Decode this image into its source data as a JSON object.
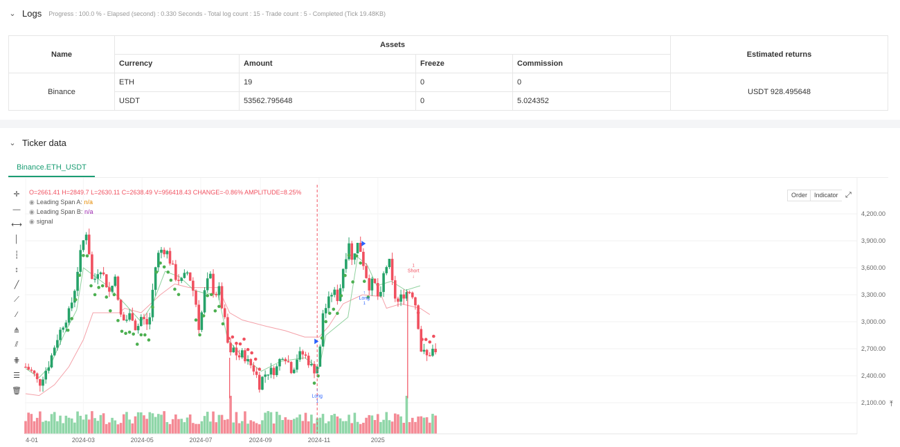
{
  "logs": {
    "title": "Logs",
    "progress_text": "Progress : 100.0 % - Elapsed (second) : 0.330  Seconds - Total log count : 15 - Trade count : 5 - Completed (Tick 19.48KB)"
  },
  "assets_table": {
    "name_header": "Name",
    "assets_header": "Assets",
    "returns_header": "Estimated returns",
    "columns": [
      "Currency",
      "Amount",
      "Freeze",
      "Commission"
    ],
    "exchange": "Binance",
    "rows": [
      {
        "currency": "ETH",
        "amount": "19",
        "freeze": "0",
        "commission": "0"
      },
      {
        "currency": "USDT",
        "amount": "53562.795648",
        "freeze": "0",
        "commission": "5.024352"
      }
    ],
    "estimated_returns": "USDT 928.495648"
  },
  "ticker": {
    "title": "Ticker data",
    "tab": "Binance.ETH_USDT"
  },
  "chart_header": {
    "ohlc_line": "O=2661.41 H=2849.7 L=2630.11 C=2638.49 V=956418.43 CHANGE=-0.86% AMPLITUDE=8.25%",
    "span_a_label": "Leading Span A:",
    "span_a_value": "n/a",
    "span_b_label": "Leading Span B:",
    "span_b_value": "n/a",
    "signal_label": "signal"
  },
  "chart_buttons": {
    "order": "Order",
    "indicator": "Indicator"
  },
  "tool_icons": [
    "crosshair-icon",
    "horizontal-line-icon",
    "horizontal-ray-icon",
    "vertical-line-icon",
    "vertical-segment-icon",
    "vertical-arrow-icon",
    "trend-line-icon",
    "ray-line-icon",
    "extended-line-icon",
    "price-range-icon",
    "parallel-channel-icon",
    "pitchfork-icon",
    "fib-retracement-icon",
    "delete-icon"
  ],
  "colors": {
    "up": "#26a269",
    "down": "#f0505f",
    "span_a": "#8fd19e",
    "span_b": "#f4a0a8",
    "signal_dot": "#4caf50",
    "marker": "#2962ff",
    "accent": "#1a9d73"
  },
  "chart_data": {
    "type": "candlestick",
    "symbol": "Binance.ETH_USDT",
    "y_ticks": [
      2100,
      2400,
      2700,
      3000,
      3300,
      3600,
      3900,
      4200
    ],
    "y_tick_labels": [
      "2,100.00",
      "2,400.00",
      "2,700.00",
      "3,000.00",
      "3,300.00",
      "3,600.00",
      "3,900.00",
      "4,200.00"
    ],
    "ylim": [
      1980,
      4300
    ],
    "x_tick_labels": [
      "4-01",
      "2024-03",
      "2024-05",
      "2024-07",
      "2024-09",
      "2024-11",
      "2025"
    ],
    "x_tick_days": [
      0,
      60,
      121,
      182,
      244,
      305,
      366
    ],
    "first_day_date": "2024-01-01",
    "close_path": [
      [
        0,
        2500
      ],
      [
        8,
        2430
      ],
      [
        14,
        2300
      ],
      [
        18,
        2400
      ],
      [
        25,
        2550
      ],
      [
        32,
        2800
      ],
      [
        40,
        3000
      ],
      [
        45,
        3100
      ],
      [
        50,
        3300
      ],
      [
        55,
        3650
      ],
      [
        60,
        3900
      ],
      [
        63,
        4000
      ],
      [
        67,
        3700
      ],
      [
        70,
        3350
      ],
      [
        73,
        3550
      ],
      [
        78,
        3600
      ],
      [
        83,
        3450
      ],
      [
        88,
        3300
      ],
      [
        93,
        3550
      ],
      [
        97,
        3100
      ],
      [
        103,
        3000
      ],
      [
        110,
        3100
      ],
      [
        115,
        2900
      ],
      [
        120,
        3050
      ],
      [
        124,
        3000
      ],
      [
        128,
        2950
      ],
      [
        132,
        3350
      ],
      [
        136,
        3700
      ],
      [
        140,
        3800
      ],
      [
        146,
        3800
      ],
      [
        151,
        3650
      ],
      [
        156,
        3500
      ],
      [
        162,
        3450
      ],
      [
        168,
        3550
      ],
      [
        172,
        3450
      ],
      [
        177,
        3200
      ],
      [
        180,
        2950
      ],
      [
        183,
        3100
      ],
      [
        187,
        3400
      ],
      [
        192,
        3500
      ],
      [
        196,
        3300
      ],
      [
        201,
        3350
      ],
      [
        207,
        3000
      ],
      [
        212,
        2600
      ],
      [
        216,
        2700
      ],
      [
        221,
        2600
      ],
      [
        226,
        2650
      ],
      [
        231,
        2550
      ],
      [
        236,
        2500
      ],
      [
        240,
        2400
      ],
      [
        243,
        2300
      ],
      [
        247,
        2400
      ],
      [
        252,
        2450
      ],
      [
        257,
        2450
      ],
      [
        262,
        2500
      ],
      [
        266,
        2650
      ],
      [
        271,
        2600
      ],
      [
        277,
        2450
      ],
      [
        282,
        2600
      ],
      [
        287,
        2650
      ],
      [
        292,
        2600
      ],
      [
        297,
        2500
      ],
      [
        302,
        2450
      ],
      [
        306,
        2700
      ],
      [
        309,
        3100
      ],
      [
        314,
        3200
      ],
      [
        319,
        3350
      ],
      [
        325,
        3250
      ],
      [
        330,
        3600
      ],
      [
        336,
        3900
      ],
      [
        340,
        3600
      ],
      [
        343,
        3900
      ],
      [
        348,
        3800
      ],
      [
        353,
        3550
      ],
      [
        357,
        3400
      ],
      [
        362,
        3450
      ],
      [
        368,
        3200
      ],
      [
        373,
        3600
      ],
      [
        378,
        3650
      ],
      [
        382,
        3350
      ],
      [
        386,
        3200
      ],
      [
        392,
        3300
      ],
      [
        398,
        3350
      ],
      [
        403,
        3300
      ],
      [
        407,
        3100
      ],
      [
        410,
        2700
      ],
      [
        414,
        2650
      ],
      [
        418,
        2600
      ],
      [
        422,
        2700
      ],
      [
        426,
        2638
      ]
    ],
    "span_a_path": [
      [
        0,
        2480
      ],
      [
        14,
        2380
      ],
      [
        25,
        2500
      ],
      [
        40,
        2860
      ],
      [
        53,
        3130
      ],
      [
        60,
        3600
      ],
      [
        70,
        3520
      ],
      [
        85,
        3400
      ],
      [
        103,
        3200
      ],
      [
        120,
        3000
      ],
      [
        132,
        3200
      ],
      [
        145,
        3560
      ],
      [
        160,
        3500
      ],
      [
        175,
        3350
      ],
      [
        185,
        3320
      ],
      [
        200,
        3300
      ],
      [
        210,
        2800
      ],
      [
        225,
        2620
      ],
      [
        245,
        2450
      ],
      [
        265,
        2560
      ],
      [
        290,
        2600
      ],
      [
        305,
        2480
      ],
      [
        312,
        2850
      ],
      [
        335,
        3050
      ],
      [
        345,
        3720
      ],
      [
        355,
        3630
      ],
      [
        365,
        3400
      ],
      [
        380,
        3450
      ],
      [
        395,
        3350
      ],
      [
        410,
        3400
      ]
    ],
    "span_b_path": [
      [
        0,
        2200
      ],
      [
        14,
        2180
      ],
      [
        30,
        2300
      ],
      [
        45,
        2500
      ],
      [
        60,
        2800
      ],
      [
        70,
        3100
      ],
      [
        97,
        3100
      ],
      [
        103,
        3150
      ],
      [
        120,
        3100
      ],
      [
        140,
        3300
      ],
      [
        155,
        3420
      ],
      [
        170,
        3380
      ],
      [
        200,
        3380
      ],
      [
        212,
        3100
      ],
      [
        225,
        3020
      ],
      [
        250,
        2950
      ],
      [
        270,
        2900
      ],
      [
        290,
        2830
      ],
      [
        305,
        2830
      ],
      [
        315,
        2950
      ],
      [
        330,
        3200
      ],
      [
        340,
        3250
      ],
      [
        350,
        3300
      ],
      [
        370,
        3280
      ],
      [
        375,
        3150
      ],
      [
        390,
        3200
      ],
      [
        410,
        3150
      ],
      [
        420,
        3080
      ]
    ],
    "signal_dot_spans": [
      [
        44,
        148
      ],
      [
        151,
        162
      ],
      [
        177,
        206
      ],
      [
        300,
        357
      ]
    ],
    "short_dot_spans": [
      [
        211,
        243
      ],
      [
        408,
        426
      ]
    ],
    "long_markers": [
      {
        "day": 303,
        "label": "Long",
        "sub": "1"
      },
      {
        "day": 352,
        "label": "Long",
        "sub": "1"
      }
    ],
    "short_markers": [
      {
        "day": 403,
        "label": "Short",
        "sub": "1"
      }
    ],
    "vertical_cursor_day": 303,
    "volume_spikes": [
      {
        "day": 212,
        "rel": 1.0
      },
      {
        "day": 397,
        "rel": 1.0
      }
    ]
  }
}
